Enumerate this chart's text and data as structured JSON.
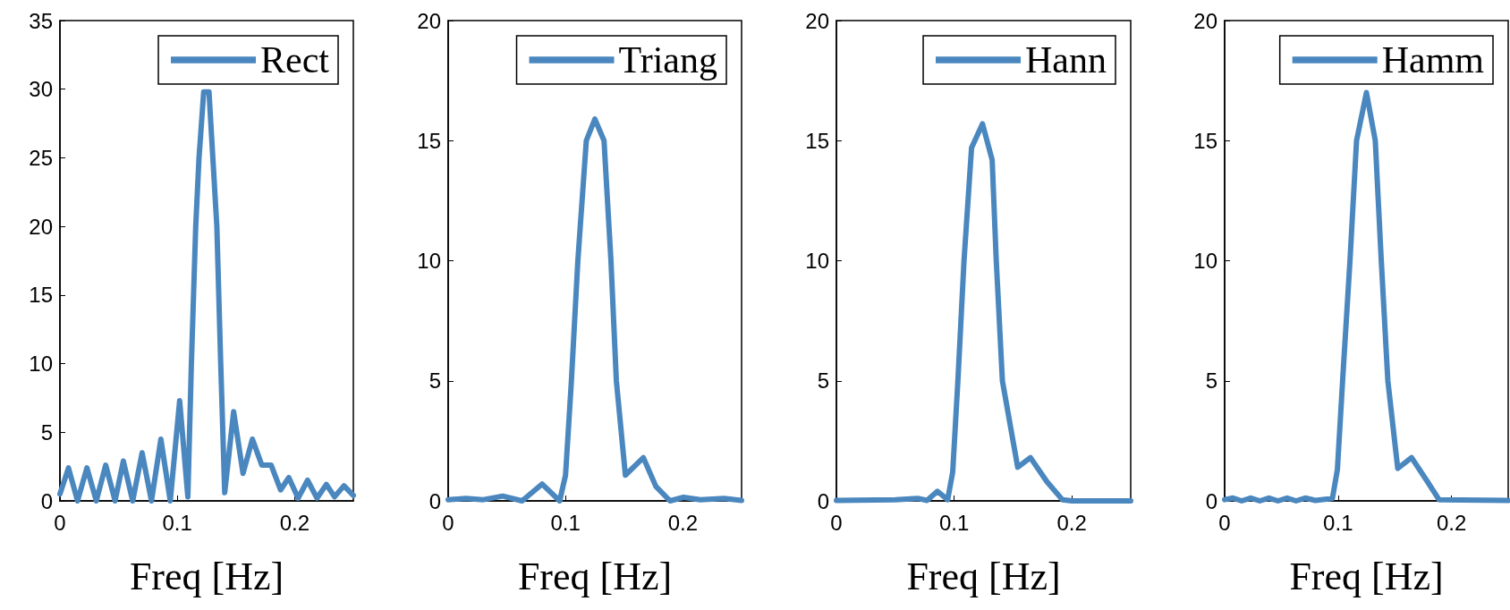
{
  "chart_data": [
    {
      "type": "line",
      "xlabel": "Freq [Hz]",
      "xlim": [
        0,
        0.25
      ],
      "xticks": [
        0,
        0.1,
        0.2
      ],
      "ylim": [
        0,
        35
      ],
      "yticks": [
        0,
        5,
        10,
        15,
        20,
        25,
        30,
        35
      ],
      "legend": "top right",
      "grid": false,
      "marker": "none",
      "series": [
        {
          "name": "Rect",
          "color": "#4a87bf",
          "x": [
            0,
            0.0073,
            0.015,
            0.023,
            0.031,
            0.039,
            0.047,
            0.054,
            0.062,
            0.07,
            0.078,
            0.086,
            0.094,
            0.102,
            0.109,
            0.112,
            0.1157,
            0.1185,
            0.1225,
            0.127,
            0.1337,
            0.137,
            0.1404,
            0.148,
            0.156,
            0.164,
            0.172,
            0.18,
            0.188,
            0.195,
            0.203,
            0.211,
            0.219,
            0.227,
            0.234,
            0.242,
            0.25
          ],
          "values": [
            0.5,
            2.4,
            0,
            2.4,
            0,
            2.6,
            0,
            2.9,
            0,
            3.5,
            0,
            4.5,
            0,
            7.3,
            0.3,
            10,
            20,
            25,
            29.8,
            29.8,
            20,
            10,
            0.6,
            6.5,
            2,
            4.5,
            2.6,
            2.6,
            0.8,
            1.7,
            0.2,
            1.5,
            0.2,
            1.2,
            0.3,
            1.1,
            0.4
          ]
        }
      ]
    },
    {
      "type": "line",
      "xlabel": "Freq [Hz]",
      "xlim": [
        0,
        0.25
      ],
      "xticks": [
        0,
        0.1,
        0.2
      ],
      "ylim": [
        0,
        20
      ],
      "yticks": [
        0,
        5,
        10,
        15,
        20
      ],
      "legend": "top right",
      "grid": false,
      "marker": "none",
      "series": [
        {
          "name": "Triang",
          "color": "#4a87bf",
          "x": [
            0,
            0.015,
            0.03,
            0.0465,
            0.063,
            0.08,
            0.095,
            0.1,
            0.105,
            0.1105,
            0.1177,
            0.125,
            0.1328,
            0.1387,
            0.1433,
            0.151,
            0.1663,
            0.177,
            0.189,
            0.2006,
            0.215,
            0.235,
            0.25
          ],
          "values": [
            0.05,
            0.1,
            0.05,
            0.2,
            0,
            0.7,
            0,
            1.07,
            5,
            10,
            15,
            15.9,
            15,
            10,
            5,
            1.07,
            1.8,
            0.6,
            0,
            0.15,
            0.05,
            0.1,
            0.02
          ]
        }
      ]
    },
    {
      "type": "line",
      "xlabel": "Freq [Hz]",
      "xlim": [
        0,
        0.25
      ],
      "xticks": [
        0,
        0.1,
        0.2
      ],
      "ylim": [
        0,
        20
      ],
      "yticks": [
        0,
        5,
        10,
        15,
        20
      ],
      "legend": "top right",
      "grid": false,
      "marker": "none",
      "series": [
        {
          "name": "Hann",
          "color": "#4a87bf",
          "x": [
            0,
            0.05,
            0.0698,
            0.077,
            0.0858,
            0.0945,
            0.0988,
            0.1032,
            0.1084,
            0.1148,
            0.1241,
            0.1323,
            0.1358,
            0.141,
            0.154,
            0.1648,
            0.1788,
            0.1919,
            0.2,
            0.25
          ],
          "values": [
            0.02,
            0.05,
            0.1,
            0.02,
            0.4,
            0.05,
            1.2,
            5,
            10,
            14.7,
            15.7,
            14.2,
            10,
            5,
            1.4,
            1.8,
            0.8,
            0.05,
            0,
            0
          ]
        }
      ]
    },
    {
      "type": "line",
      "xlabel": "Freq [Hz]",
      "xlim": [
        0,
        0.25
      ],
      "xticks": [
        0,
        0.1,
        0.2
      ],
      "ylim": [
        0,
        20
      ],
      "yticks": [
        0,
        5,
        10,
        15,
        20
      ],
      "legend": "top right",
      "grid": false,
      "marker": "none",
      "series": [
        {
          "name": "Hamm",
          "color": "#4a87bf",
          "x": [
            0,
            0.0073,
            0.015,
            0.023,
            0.031,
            0.039,
            0.047,
            0.055,
            0.063,
            0.071,
            0.08,
            0.095,
            0.0994,
            0.104,
            0.1105,
            0.1163,
            0.125,
            0.1328,
            0.1381,
            0.1439,
            0.1526,
            0.1648,
            0.1788,
            0.189,
            0.25
          ],
          "values": [
            0.05,
            0.12,
            0,
            0.12,
            0,
            0.12,
            0,
            0.12,
            0,
            0.12,
            0.02,
            0.1,
            1.3,
            5,
            10,
            15,
            17,
            15,
            10,
            5,
            1.35,
            1.8,
            0.8,
            0.05,
            0.02
          ]
        }
      ]
    }
  ]
}
